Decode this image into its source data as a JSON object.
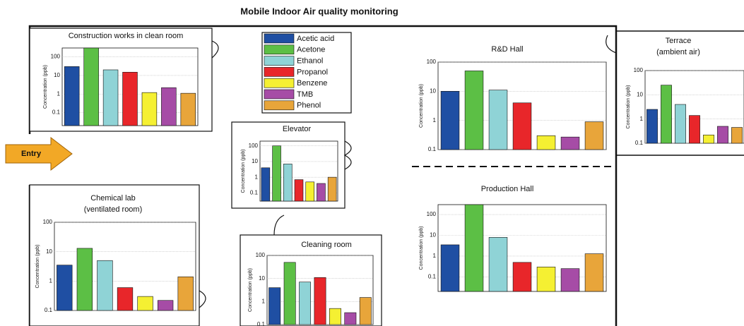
{
  "title": "Mobile Indoor Air quality monitoring",
  "entry_label": "Entry",
  "legend": {
    "labels": [
      "Acetic acid",
      "Acetone",
      "Ethanol",
      "Propanol",
      "Benzene",
      "TMB",
      "Phenol"
    ],
    "colors": [
      "#1f4fa3",
      "#5cbf45",
      "#8fd3d6",
      "#e8262a",
      "#f5f032",
      "#a64ca6",
      "#e8a53a"
    ]
  },
  "chart_data": [
    {
      "type": "bar",
      "title": [
        "Construction works in clean room"
      ],
      "ylabel": "Concentration (ppb)",
      "log": true,
      "grid": true,
      "values": [
        30,
        300,
        20,
        15,
        1.2,
        2.2,
        1.1
      ],
      "ylim": [
        0.02,
        300
      ],
      "yticks": [
        0.1,
        1,
        10,
        100
      ]
    },
    {
      "type": "bar",
      "title": [
        "Elevator"
      ],
      "ylabel": "Concentration (ppb)",
      "log": true,
      "grid": true,
      "values": [
        4,
        100,
        7,
        0.7,
        0.5,
        0.4,
        1
      ],
      "ylim": [
        0.03,
        200
      ],
      "yticks": [
        0.1,
        1,
        10,
        100
      ]
    },
    {
      "type": "bar",
      "title": [
        "R&D Hall"
      ],
      "ylabel": "Concentration (ppb)",
      "log": true,
      "grid": true,
      "values": [
        10,
        50,
        11,
        4,
        0.3,
        0.27,
        0.9
      ],
      "ylim": [
        0.1,
        100
      ],
      "yticks": [
        0.1,
        1,
        10,
        100
      ]
    },
    {
      "type": "bar",
      "title": [
        "Terrace",
        "(ambient air)"
      ],
      "ylabel": "Concentration (ppb)",
      "log": true,
      "grid": true,
      "values": [
        2.5,
        25,
        4,
        1.4,
        0.22,
        0.5,
        0.45
      ],
      "ylim": [
        0.1,
        100
      ],
      "yticks": [
        0.1,
        1,
        10,
        100
      ]
    },
    {
      "type": "bar",
      "title": [
        "Chemical lab",
        "(ventilated room)"
      ],
      "ylabel": "Concentration (ppb)",
      "log": true,
      "grid": true,
      "values": [
        3.5,
        13,
        5,
        0.6,
        0.3,
        0.22,
        1.4
      ],
      "ylim": [
        0.1,
        100
      ],
      "yticks": [
        0.1,
        1,
        10,
        100
      ]
    },
    {
      "type": "bar",
      "title": [
        "Cleaning room"
      ],
      "ylabel": "Concentration (ppb)",
      "log": true,
      "grid": true,
      "values": [
        4,
        50,
        7,
        11,
        0.5,
        0.33,
        1.5
      ],
      "ylim": [
        0.1,
        100
      ],
      "yticks": [
        0.1,
        1,
        10,
        100
      ]
    },
    {
      "type": "bar",
      "title": [
        "Production Hall"
      ],
      "ylabel": "Concentration (ppb)",
      "log": true,
      "grid": true,
      "values": [
        3.5,
        300,
        8,
        0.5,
        0.3,
        0.25,
        1.3
      ],
      "ylim": [
        0.02,
        300
      ],
      "yticks": [
        0.1,
        1,
        10,
        100
      ]
    }
  ]
}
